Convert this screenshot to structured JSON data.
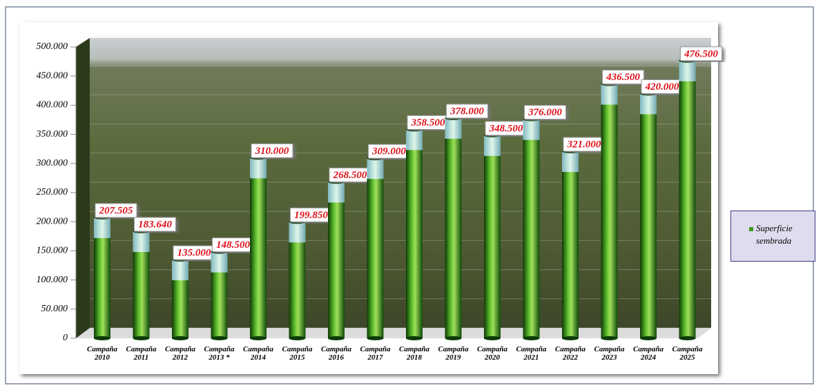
{
  "chart_data": {
    "type": "bar",
    "categories": [
      "Campaña 2010",
      "Campaña 2011",
      "Campaña 2012",
      "Campaña 2013 *",
      "Campaña 2014",
      "Campaña 2015",
      "Campaña 2016",
      "Campaña 2017",
      "Campaña 2018",
      "Campaña 2019",
      "Campaña 2020",
      "Campaña 2021",
      "Campaña 2022",
      "Campaña 2023",
      "Campaña 2024",
      "Campaña 2025"
    ],
    "series": [
      {
        "name": "Superficie sembrada",
        "color": "#3d9a1e",
        "values": [
          207505,
          183640,
          135000,
          148500,
          310000,
          199850,
          268500,
          309000,
          358500,
          378000,
          348500,
          376000,
          321000,
          436500,
          420000,
          476500
        ],
        "value_labels": [
          "207.505",
          "183.640",
          "135.000",
          "148.500",
          "310.000",
          "199.850",
          "268.500",
          "309.000",
          "358.500",
          "378.000",
          "348.500",
          "376.000",
          "321.000",
          "436.500",
          "420.000",
          "476.500"
        ]
      }
    ],
    "ylim": [
      0,
      500000
    ],
    "yticks": [
      0,
      {
        "value": 50000,
        "label": "50.000"
      },
      {
        "value": 100000,
        "label": "100.000"
      },
      {
        "value": 150000,
        "label": "150.000"
      },
      {
        "value": 200000,
        "label": "200.000"
      },
      {
        "value": 250000,
        "label": "250.000"
      },
      {
        "value": 300000,
        "label": "300.000"
      },
      {
        "value": 350000,
        "label": "350.000"
      },
      {
        "value": 400000,
        "label": "400.000"
      },
      {
        "value": 450000,
        "label": "450.000"
      },
      {
        "value": 500000,
        "label": "500.000"
      }
    ],
    "grid": true,
    "legend": "right"
  }
}
